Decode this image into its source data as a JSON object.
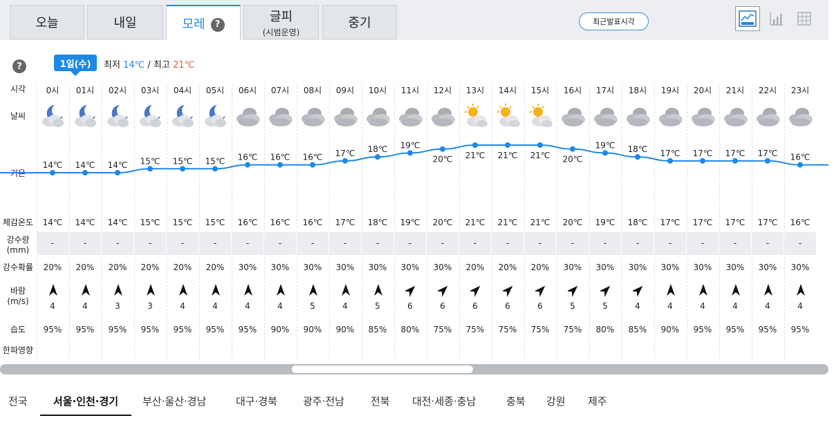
{
  "tabs": [
    {
      "label": "오늘",
      "sub": ""
    },
    {
      "label": "내일",
      "sub": ""
    },
    {
      "label": "모레",
      "sub": ""
    },
    {
      "label": "글피",
      "sub": "(시범운영)"
    },
    {
      "label": "중기",
      "sub": ""
    }
  ],
  "active_tab": 2,
  "help_glyph": "?",
  "latest_button": "최근발표시각",
  "view_buttons": [
    {
      "icon": "line-chart-icon",
      "active": true
    },
    {
      "icon": "bar-chart-icon",
      "active": false
    },
    {
      "icon": "table-icon",
      "active": false
    }
  ],
  "day_badge": "1일(수)",
  "minmax": {
    "min_label": "최저",
    "min_value": "14℃",
    "sep": "/",
    "max_label": "최고",
    "max_value": "21℃"
  },
  "row_labels": {
    "time": "시각",
    "weather": "날씨",
    "temp": "기온",
    "feel": "체감온도",
    "rain": "강수량",
    "rain_unit": "(mm)",
    "prob": "강수확률",
    "wind": "바람",
    "wind_unit": "(m/s)",
    "humidity": "습도",
    "cold": "한파영향"
  },
  "hours": [
    {
      "time": "0시",
      "weather": "night-cloudy",
      "temp": 14,
      "temp_label": "14℃",
      "feel": "14℃",
      "rain": "-",
      "prob": "20%",
      "wind_dir": "N",
      "wind": "4",
      "hum": "95%"
    },
    {
      "time": "01시",
      "weather": "night-cloudy",
      "temp": 14,
      "temp_label": "14℃",
      "feel": "14℃",
      "rain": "-",
      "prob": "20%",
      "wind_dir": "N",
      "wind": "4",
      "hum": "95%"
    },
    {
      "time": "02시",
      "weather": "night-cloudy",
      "temp": 14,
      "temp_label": "14℃",
      "feel": "14℃",
      "rain": "-",
      "prob": "20%",
      "wind_dir": "N",
      "wind": "3",
      "hum": "95%"
    },
    {
      "time": "03시",
      "weather": "night-cloudy",
      "temp": 15,
      "temp_label": "15℃",
      "feel": "15℃",
      "rain": "-",
      "prob": "20%",
      "wind_dir": "N",
      "wind": "3",
      "hum": "95%"
    },
    {
      "time": "04시",
      "weather": "night-cloudy",
      "temp": 15,
      "temp_label": "15℃",
      "feel": "15℃",
      "rain": "-",
      "prob": "20%",
      "wind_dir": "N",
      "wind": "4",
      "hum": "95%"
    },
    {
      "time": "05시",
      "weather": "night-cloudy",
      "temp": 15,
      "temp_label": "15℃",
      "feel": "15℃",
      "rain": "-",
      "prob": "20%",
      "wind_dir": "N",
      "wind": "4",
      "hum": "95%"
    },
    {
      "time": "06시",
      "weather": "overcast",
      "temp": 16,
      "temp_label": "16℃",
      "feel": "16℃",
      "rain": "-",
      "prob": "30%",
      "wind_dir": "N",
      "wind": "4",
      "hum": "95%"
    },
    {
      "time": "07시",
      "weather": "overcast",
      "temp": 16,
      "temp_label": "16℃",
      "feel": "16℃",
      "rain": "-",
      "prob": "30%",
      "wind_dir": "N",
      "wind": "4",
      "hum": "90%"
    },
    {
      "time": "08시",
      "weather": "overcast",
      "temp": 16,
      "temp_label": "16℃",
      "feel": "16℃",
      "rain": "-",
      "prob": "30%",
      "wind_dir": "N",
      "wind": "5",
      "hum": "90%"
    },
    {
      "time": "09시",
      "weather": "overcast",
      "temp": 17,
      "temp_label": "17℃",
      "feel": "17℃",
      "rain": "-",
      "prob": "30%",
      "wind_dir": "N",
      "wind": "4",
      "hum": "90%"
    },
    {
      "time": "10시",
      "weather": "overcast",
      "temp": 18,
      "temp_label": "18℃",
      "feel": "18℃",
      "rain": "-",
      "prob": "30%",
      "wind_dir": "N",
      "wind": "5",
      "hum": "85%"
    },
    {
      "time": "11시",
      "weather": "overcast",
      "temp": 19,
      "temp_label": "19℃",
      "feel": "19℃",
      "rain": "-",
      "prob": "30%",
      "wind_dir": "NE",
      "wind": "6",
      "hum": "80%"
    },
    {
      "time": "12시",
      "weather": "overcast",
      "temp": 20,
      "temp_label": "20℃",
      "feel": "20℃",
      "rain": "-",
      "prob": "30%",
      "wind_dir": "NE",
      "wind": "6",
      "hum": "75%"
    },
    {
      "time": "13시",
      "weather": "sun-cloudy",
      "temp": 21,
      "temp_label": "21℃",
      "feel": "21℃",
      "rain": "-",
      "prob": "20%",
      "wind_dir": "NE",
      "wind": "6",
      "hum": "75%"
    },
    {
      "time": "14시",
      "weather": "sun-cloudy",
      "temp": 21,
      "temp_label": "21℃",
      "feel": "21℃",
      "rain": "-",
      "prob": "20%",
      "wind_dir": "NE",
      "wind": "6",
      "hum": "75%"
    },
    {
      "time": "15시",
      "weather": "sun-cloudy",
      "temp": 21,
      "temp_label": "21℃",
      "feel": "21℃",
      "rain": "-",
      "prob": "20%",
      "wind_dir": "NE",
      "wind": "6",
      "hum": "75%"
    },
    {
      "time": "16시",
      "weather": "overcast",
      "temp": 20,
      "temp_label": "20℃",
      "feel": "20℃",
      "rain": "-",
      "prob": "30%",
      "wind_dir": "NE",
      "wind": "5",
      "hum": "75%"
    },
    {
      "time": "17시",
      "weather": "overcast",
      "temp": 19,
      "temp_label": "19℃",
      "feel": "19℃",
      "rain": "-",
      "prob": "30%",
      "wind_dir": "NE",
      "wind": "5",
      "hum": "80%"
    },
    {
      "time": "18시",
      "weather": "overcast",
      "temp": 18,
      "temp_label": "18℃",
      "feel": "18℃",
      "rain": "-",
      "prob": "30%",
      "wind_dir": "NE",
      "wind": "4",
      "hum": "85%"
    },
    {
      "time": "19시",
      "weather": "overcast",
      "temp": 17,
      "temp_label": "17℃",
      "feel": "17℃",
      "rain": "-",
      "prob": "30%",
      "wind_dir": "N",
      "wind": "4",
      "hum": "90%"
    },
    {
      "time": "20시",
      "weather": "overcast",
      "temp": 17,
      "temp_label": "17℃",
      "feel": "17℃",
      "rain": "-",
      "prob": "30%",
      "wind_dir": "N",
      "wind": "4",
      "hum": "95%"
    },
    {
      "time": "21시",
      "weather": "overcast",
      "temp": 17,
      "temp_label": "17℃",
      "feel": "17℃",
      "rain": "-",
      "prob": "30%",
      "wind_dir": "N",
      "wind": "4",
      "hum": "95%"
    },
    {
      "time": "22시",
      "weather": "overcast",
      "temp": 17,
      "temp_label": "17℃",
      "feel": "17℃",
      "rain": "-",
      "prob": "30%",
      "wind_dir": "N",
      "wind": "4",
      "hum": "95%"
    },
    {
      "time": "23시",
      "weather": "overcast",
      "temp": 16,
      "temp_label": "16℃",
      "feel": "16℃",
      "rain": "-",
      "prob": "30%",
      "wind_dir": "N",
      "wind": "4",
      "hum": "95%"
    }
  ],
  "regions": [
    "전국",
    "서울·인천·경기",
    "부산·울산·경남",
    "대구·경북",
    "광주·전남",
    "전북",
    "대전·세종·충남",
    "충북",
    "강원",
    "제주"
  ],
  "active_region": 1,
  "colors": {
    "accent": "#1e88e5",
    "min_temp": "#1e88e5",
    "max_temp": "#e0642a"
  }
}
